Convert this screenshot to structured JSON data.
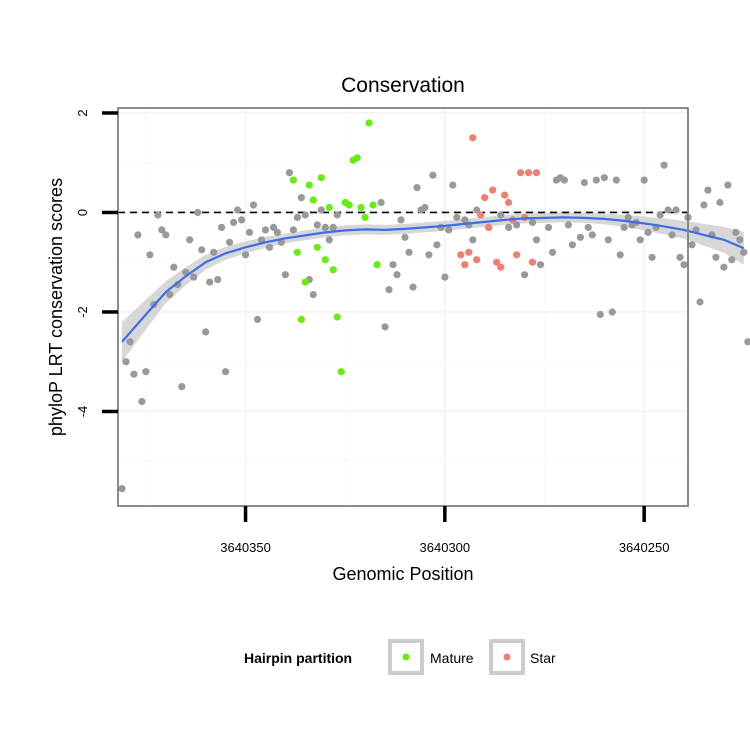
{
  "chart_data": {
    "type": "scatter",
    "title": "Conservation",
    "xlabel": "Genomic Position",
    "ylabel": "phyloP LRT conservation scores",
    "x_reversed": true,
    "xlim": [
      3640382,
      3640239
    ],
    "ylim": [
      -5.9,
      2.1
    ],
    "x_ticks": [
      3640350,
      3640300,
      3640250
    ],
    "x_tick_labels": [
      "3640350",
      "3640300",
      "3640250"
    ],
    "y_ticks": [
      2,
      0,
      -2,
      -4
    ],
    "y_tick_labels": [
      "2",
      "0",
      "-2",
      "-4"
    ],
    "reference_line": {
      "y": 0,
      "style": "dashed"
    },
    "grid": true,
    "legend": {
      "title": "Hairpin partition",
      "position": "bottom",
      "entries": [
        {
          "label": "Mature",
          "color": "#66ee11"
        },
        {
          "label": "Star",
          "color": "#f07e71"
        }
      ]
    },
    "colors": {
      "other": "#999999",
      "mature": "#66ee11",
      "star": "#f07e71",
      "smooth": "#3c6ee8",
      "band": "#c9c9c9"
    },
    "series": [
      {
        "name": "Other",
        "points": [
          [
            3640381,
            -5.55
          ],
          [
            3640380,
            -3.0
          ],
          [
            3640379,
            -2.6
          ],
          [
            3640378,
            -3.25
          ],
          [
            3640377,
            -0.45
          ],
          [
            3640376,
            -3.8
          ],
          [
            3640375,
            -3.2
          ],
          [
            3640374,
            -0.85
          ],
          [
            3640373,
            -1.85
          ],
          [
            3640372,
            -0.05
          ],
          [
            3640371,
            -0.35
          ],
          [
            3640370,
            -0.45
          ],
          [
            3640369,
            -1.65
          ],
          [
            3640368,
            -1.1
          ],
          [
            3640367,
            -1.45
          ],
          [
            3640366,
            -3.5
          ],
          [
            3640365,
            -1.2
          ],
          [
            3640364,
            -0.55
          ],
          [
            3640363,
            -1.3
          ],
          [
            3640362,
            0.0
          ],
          [
            3640361,
            -0.75
          ],
          [
            3640360,
            -2.4
          ],
          [
            3640359,
            -1.4
          ],
          [
            3640358,
            -0.8
          ],
          [
            3640357,
            -1.35
          ],
          [
            3640356,
            -0.3
          ],
          [
            3640355,
            -3.2
          ],
          [
            3640354,
            -0.6
          ],
          [
            3640353,
            -0.2
          ],
          [
            3640352,
            0.05
          ],
          [
            3640351,
            -0.15
          ],
          [
            3640350,
            -0.85
          ],
          [
            3640349,
            -0.4
          ],
          [
            3640348,
            0.15
          ],
          [
            3640347,
            -2.15
          ],
          [
            3640346,
            -0.55
          ],
          [
            3640345,
            -0.35
          ],
          [
            3640344,
            -0.7
          ],
          [
            3640343,
            -0.3
          ],
          [
            3640342,
            -0.4
          ],
          [
            3640341,
            -0.6
          ],
          [
            3640340,
            -1.25
          ],
          [
            3640339,
            0.8
          ],
          [
            3640338,
            -0.35
          ],
          [
            3640337,
            -0.1
          ],
          [
            3640336,
            0.3
          ],
          [
            3640335,
            -0.05
          ],
          [
            3640334,
            -1.35
          ],
          [
            3640333,
            -1.65
          ],
          [
            3640332,
            -0.25
          ],
          [
            3640331,
            0.05
          ],
          [
            3640330,
            -0.3
          ],
          [
            3640329,
            -0.55
          ],
          [
            3640328,
            -0.3
          ],
          [
            3640327,
            -0.05
          ],
          [
            3640316,
            0.2
          ],
          [
            3640315,
            -2.3
          ],
          [
            3640314,
            -1.55
          ],
          [
            3640313,
            -1.05
          ],
          [
            3640312,
            -1.25
          ],
          [
            3640311,
            -0.15
          ],
          [
            3640310,
            -0.5
          ],
          [
            3640309,
            -0.8
          ],
          [
            3640308,
            -1.5
          ],
          [
            3640307,
            0.5
          ],
          [
            3640306,
            0.05
          ],
          [
            3640305,
            0.1
          ],
          [
            3640304,
            -0.85
          ],
          [
            3640303,
            0.75
          ],
          [
            3640302,
            -0.65
          ],
          [
            3640301,
            -0.3
          ],
          [
            3640300,
            -1.3
          ],
          [
            3640299,
            -0.35
          ],
          [
            3640298,
            0.55
          ],
          [
            3640297,
            -0.1
          ],
          [
            3640295,
            -0.15
          ],
          [
            3640294,
            -0.25
          ],
          [
            3640293,
            -0.55
          ],
          [
            3640292,
            0.05
          ],
          [
            3640289,
            -0.3
          ],
          [
            3640286,
            -0.05
          ],
          [
            3640284,
            -0.3
          ],
          [
            3640282,
            -0.25
          ],
          [
            3640280,
            -1.25
          ],
          [
            3640278,
            -0.2
          ],
          [
            3640277,
            -0.55
          ],
          [
            3640276,
            -1.05
          ],
          [
            3640274,
            -0.3
          ],
          [
            3640273,
            -0.8
          ],
          [
            3640272,
            0.65
          ],
          [
            3640271,
            0.7
          ],
          [
            3640270,
            0.65
          ],
          [
            3640269,
            -0.25
          ],
          [
            3640268,
            -0.65
          ],
          [
            3640266,
            -0.5
          ],
          [
            3640265,
            0.6
          ],
          [
            3640264,
            -0.3
          ],
          [
            3640263,
            -0.45
          ],
          [
            3640262,
            0.65
          ],
          [
            3640261,
            -2.05
          ],
          [
            3640260,
            0.7
          ],
          [
            3640259,
            -0.55
          ],
          [
            3640258,
            -2.0
          ],
          [
            3640257,
            0.65
          ],
          [
            3640256,
            -0.85
          ],
          [
            3640255,
            -0.3
          ],
          [
            3640254,
            -0.1
          ],
          [
            3640253,
            -0.25
          ],
          [
            3640252,
            -0.2
          ],
          [
            3640251,
            -0.55
          ],
          [
            3640250,
            0.65
          ],
          [
            3640249,
            -0.4
          ],
          [
            3640248,
            -0.9
          ],
          [
            3640247,
            -0.3
          ],
          [
            3640246,
            -0.05
          ],
          [
            3640245,
            0.95
          ],
          [
            3640244,
            0.05
          ],
          [
            3640243,
            -0.45
          ],
          [
            3640242,
            0.05
          ],
          [
            3640241,
            -0.9
          ],
          [
            3640240,
            -1.05
          ],
          [
            3640239,
            -0.1
          ],
          [
            3640238,
            -0.65
          ],
          [
            3640237,
            -0.35
          ],
          [
            3640236,
            -1.8
          ],
          [
            3640235,
            0.15
          ],
          [
            3640234,
            0.45
          ],
          [
            3640233,
            -0.45
          ],
          [
            3640232,
            -0.9
          ],
          [
            3640231,
            0.2
          ],
          [
            3640230,
            -1.1
          ],
          [
            3640229,
            0.55
          ],
          [
            3640228,
            -0.95
          ],
          [
            3640227,
            -0.4
          ],
          [
            3640226,
            -0.55
          ],
          [
            3640225,
            -0.8
          ],
          [
            3640224,
            -2.6
          ]
        ]
      },
      {
        "name": "Mature",
        "points": [
          [
            3640338,
            0.65
          ],
          [
            3640337,
            -0.8
          ],
          [
            3640336,
            -2.15
          ],
          [
            3640335,
            -1.4
          ],
          [
            3640334,
            0.55
          ],
          [
            3640333,
            0.25
          ],
          [
            3640332,
            -0.7
          ],
          [
            3640331,
            0.7
          ],
          [
            3640330,
            -0.95
          ],
          [
            3640329,
            0.1
          ],
          [
            3640328,
            -1.15
          ],
          [
            3640327,
            -2.1
          ],
          [
            3640326,
            -3.2
          ],
          [
            3640325,
            0.2
          ],
          [
            3640324,
            0.15
          ],
          [
            3640323,
            1.05
          ],
          [
            3640322,
            1.1
          ],
          [
            3640321,
            0.1
          ],
          [
            3640320,
            -0.1
          ],
          [
            3640319,
            1.8
          ],
          [
            3640318,
            0.15
          ],
          [
            3640317,
            -1.05
          ]
        ]
      },
      {
        "name": "Star",
        "points": [
          [
            3640296,
            -0.85
          ],
          [
            3640295,
            -1.05
          ],
          [
            3640294,
            -0.8
          ],
          [
            3640293,
            1.5
          ],
          [
            3640292,
            -0.95
          ],
          [
            3640291,
            -0.05
          ],
          [
            3640290,
            0.3
          ],
          [
            3640289,
            -0.3
          ],
          [
            3640288,
            0.45
          ],
          [
            3640287,
            -1.0
          ],
          [
            3640286,
            -1.1
          ],
          [
            3640285,
            0.35
          ],
          [
            3640284,
            0.2
          ],
          [
            3640283,
            -0.15
          ],
          [
            3640282,
            -0.85
          ],
          [
            3640281,
            0.8
          ],
          [
            3640280,
            -0.1
          ],
          [
            3640279,
            0.8
          ],
          [
            3640278,
            -1.0
          ],
          [
            3640277,
            0.8
          ]
        ]
      }
    ],
    "smooth": {
      "method": "loess",
      "x": [
        3640381,
        3640375,
        3640370,
        3640365,
        3640360,
        3640355,
        3640350,
        3640345,
        3640340,
        3640335,
        3640330,
        3640325,
        3640320,
        3640315,
        3640310,
        3640305,
        3640300,
        3640295,
        3640290,
        3640285,
        3640280,
        3640275,
        3640270,
        3640265,
        3640260,
        3640255,
        3640250,
        3640245,
        3640240,
        3640235,
        3640230,
        3640225
      ],
      "y": [
        -2.6,
        -2.05,
        -1.6,
        -1.28,
        -1.0,
        -0.82,
        -0.7,
        -0.6,
        -0.52,
        -0.46,
        -0.4,
        -0.36,
        -0.34,
        -0.35,
        -0.33,
        -0.3,
        -0.27,
        -0.23,
        -0.19,
        -0.15,
        -0.12,
        -0.11,
        -0.1,
        -0.11,
        -0.13,
        -0.17,
        -0.22,
        -0.28,
        -0.35,
        -0.45,
        -0.55,
        -0.72
      ],
      "se": [
        0.4,
        0.3,
        0.22,
        0.18,
        0.15,
        0.13,
        0.12,
        0.11,
        0.1,
        0.1,
        0.1,
        0.1,
        0.1,
        0.1,
        0.1,
        0.1,
        0.1,
        0.1,
        0.1,
        0.1,
        0.1,
        0.1,
        0.1,
        0.1,
        0.11,
        0.12,
        0.14,
        0.16,
        0.18,
        0.22,
        0.26,
        0.33
      ]
    }
  }
}
